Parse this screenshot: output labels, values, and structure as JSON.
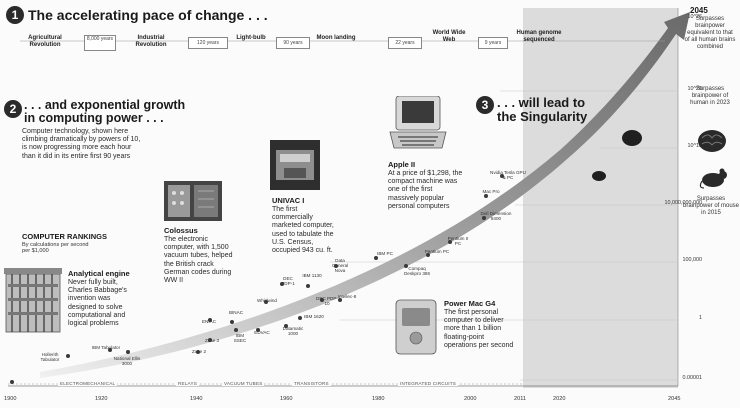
{
  "section1": {
    "number": "1",
    "title": "The accelerating pace of change . . .",
    "milestones": [
      {
        "label": "Agricultural Revolution"
      },
      {
        "label": "Industrial Revolution"
      },
      {
        "label": "Light-bulb"
      },
      {
        "label": "Moon landing"
      },
      {
        "label": "World Wide Web"
      },
      {
        "label": "Human genome sequenced"
      }
    ],
    "intervals": [
      "8,000 years",
      "120 years",
      "90 years",
      "22 years",
      "9 years"
    ]
  },
  "section2": {
    "number": "2",
    "title": ". . . and exponential growth in computing power . . .",
    "body": "Computer technology, shown here climbing dramatically by powers of 10, is now progressing more each hour than it did in its entire first 90 years"
  },
  "section3": {
    "number": "3",
    "title": ". . . will lead to the Singularity"
  },
  "rankings": {
    "title": "COMPUTER RANKINGS",
    "subtitle": "By calculations per second per $1,000"
  },
  "featured": [
    {
      "title": "Analytical engine",
      "text": "Never fully built, Charles Babbage's invention was designed to solve computational and logical problems"
    },
    {
      "title": "Colossus",
      "text": "The electronic computer, with 1,500 vacuum tubes, helped the British crack German codes during WW II"
    },
    {
      "title": "UNIVAC I",
      "text": "The first commercially marketed computer, used to tabulate the U.S. Census, occupied 943 cu. ft."
    },
    {
      "title": "Apple II",
      "text": "At a price of $1,298, the compact machine was one of the first massively popular personal computers"
    },
    {
      "title": "Power Mac G4",
      "text": "The first personal computer to deliver more than 1 billion floating-point operations per second"
    }
  ],
  "points": [
    {
      "label": "Hollerith Tabulator"
    },
    {
      "label": "IBM Tabulator"
    },
    {
      "label": "National Ellis 3000"
    },
    {
      "label": "Zuse 2"
    },
    {
      "label": "Zuse 3"
    },
    {
      "label": "ENIAC"
    },
    {
      "label": "BINAC"
    },
    {
      "label": "IBM SSEC"
    },
    {
      "label": "EDVAC"
    },
    {
      "label": "Whirlwind"
    },
    {
      "label": "DEC PDP-1"
    },
    {
      "label": "Datamatic 1000"
    },
    {
      "label": "IBM 1620"
    },
    {
      "label": "IBM 1130"
    },
    {
      "label": "DEC PDP-10"
    },
    {
      "label": "Data General Nova"
    },
    {
      "label": "Intellec-8"
    },
    {
      "label": "IBM PC"
    },
    {
      "label": "Compaq Deskpro 386"
    },
    {
      "label": "Pentium PC"
    },
    {
      "label": "Pentium II PC"
    },
    {
      "label": "Dell Dimension 8400"
    },
    {
      "label": "Mac Pro"
    },
    {
      "label": "Nvidia Tesla GPU & PC"
    }
  ],
  "y_axis": [
    "10^26",
    "10^20",
    "10^15",
    "10,000,000,000",
    "100,000",
    "1",
    "0.00001"
  ],
  "x_axis": [
    "1900",
    "1920",
    "1940",
    "1960",
    "1980",
    "2000",
    "2011",
    "2020",
    "2045"
  ],
  "eras": [
    "ELECTROMECHANICAL",
    "RELAYS",
    "VACUUM TUBES",
    "TRANSISTORS",
    "INTEGRATED CIRCUITS"
  ],
  "singularity": [
    {
      "label": "2045",
      "text": "Surpasses brainpower equivalent to that of all human brains combined"
    },
    {
      "label": "",
      "text": "Surpasses brainpower of human in 2023"
    },
    {
      "label": "",
      "text": "Surpasses brainpower of mouse in 2015"
    }
  ]
}
